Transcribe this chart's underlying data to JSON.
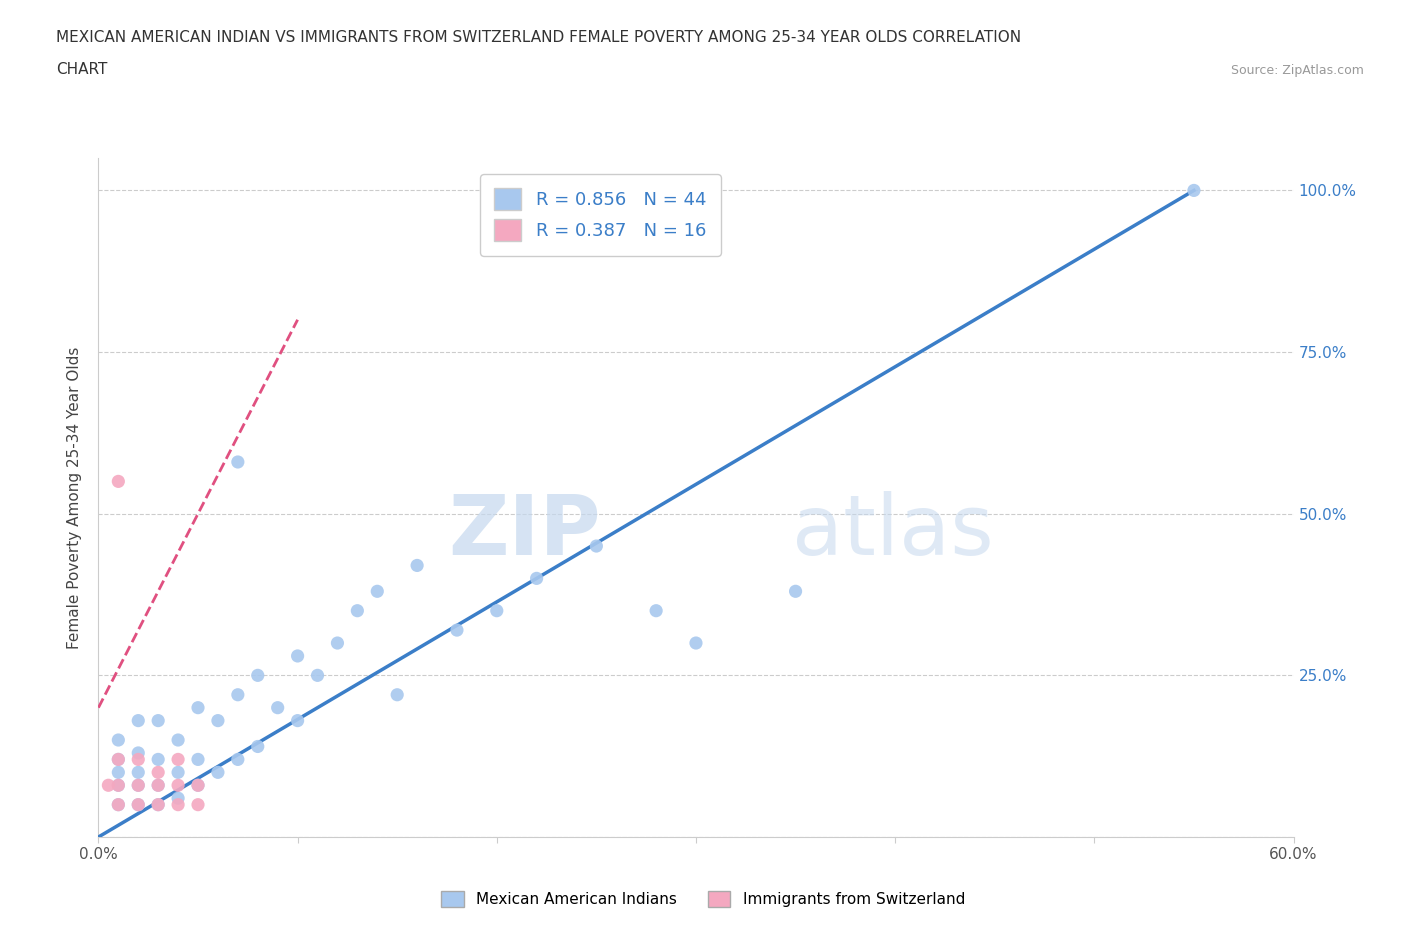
{
  "title_line1": "MEXICAN AMERICAN INDIAN VS IMMIGRANTS FROM SWITZERLAND FEMALE POVERTY AMONG 25-34 YEAR OLDS CORRELATION",
  "title_line2": "CHART",
  "source": "Source: ZipAtlas.com",
  "ylabel": "Female Poverty Among 25-34 Year Olds",
  "xlim": [
    0.0,
    0.6
  ],
  "ylim": [
    0.0,
    1.05
  ],
  "x_ticks": [
    0.0,
    0.1,
    0.2,
    0.3,
    0.4,
    0.5,
    0.6
  ],
  "x_tick_labels": [
    "0.0%",
    "",
    "",
    "",
    "",
    "",
    "60.0%"
  ],
  "y_tick_vals": [
    0.0,
    0.25,
    0.5,
    0.75,
    1.0
  ],
  "y_tick_labels": [
    "",
    "25.0%",
    "50.0%",
    "75.0%",
    "100.0%"
  ],
  "blue_color": "#A8C8EE",
  "pink_color": "#F4A8C0",
  "blue_line_color": "#3B7EC8",
  "pink_line_color": "#E05080",
  "legend_R1": "R = 0.856",
  "legend_N1": "N = 44",
  "legend_R2": "R = 0.387",
  "legend_N2": "N = 16",
  "watermark_zip": "ZIP",
  "watermark_atlas": "atlas",
  "group1_label": "Mexican American Indians",
  "group2_label": "Immigrants from Switzerland",
  "blue_line_x": [
    0.0,
    0.55
  ],
  "blue_line_y": [
    0.0,
    1.0
  ],
  "pink_line_x": [
    0.0,
    0.1
  ],
  "pink_line_y": [
    0.2,
    0.8
  ],
  "blue_x": [
    0.01,
    0.01,
    0.01,
    0.01,
    0.01,
    0.02,
    0.02,
    0.02,
    0.02,
    0.02,
    0.03,
    0.03,
    0.03,
    0.03,
    0.04,
    0.04,
    0.04,
    0.05,
    0.05,
    0.05,
    0.06,
    0.06,
    0.07,
    0.07,
    0.08,
    0.08,
    0.09,
    0.1,
    0.1,
    0.11,
    0.12,
    0.13,
    0.14,
    0.15,
    0.16,
    0.18,
    0.2,
    0.22,
    0.25,
    0.28,
    0.3,
    0.35,
    0.55,
    0.07
  ],
  "blue_y": [
    0.05,
    0.08,
    0.1,
    0.12,
    0.15,
    0.05,
    0.08,
    0.1,
    0.13,
    0.18,
    0.05,
    0.08,
    0.12,
    0.18,
    0.06,
    0.1,
    0.15,
    0.08,
    0.12,
    0.2,
    0.1,
    0.18,
    0.12,
    0.22,
    0.14,
    0.25,
    0.2,
    0.18,
    0.28,
    0.25,
    0.3,
    0.35,
    0.38,
    0.22,
    0.42,
    0.32,
    0.35,
    0.4,
    0.45,
    0.35,
    0.3,
    0.38,
    1.0,
    0.58
  ],
  "pink_x": [
    0.005,
    0.01,
    0.01,
    0.01,
    0.02,
    0.02,
    0.02,
    0.03,
    0.03,
    0.03,
    0.04,
    0.04,
    0.04,
    0.05,
    0.05,
    0.01
  ],
  "pink_y": [
    0.08,
    0.05,
    0.08,
    0.12,
    0.05,
    0.08,
    0.12,
    0.05,
    0.08,
    0.1,
    0.05,
    0.08,
    0.12,
    0.05,
    0.08,
    0.55
  ]
}
